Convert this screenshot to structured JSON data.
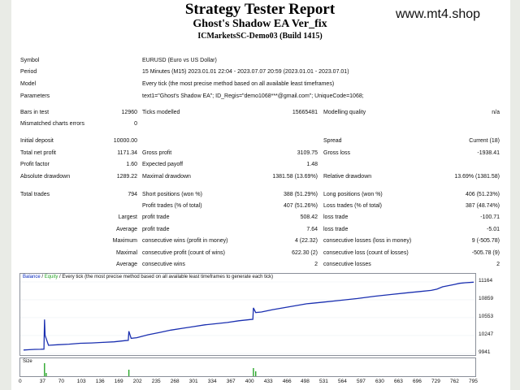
{
  "header": {
    "title": "Strategy Tester Report",
    "subtitle": "Ghost's Shadow EA Ver_fix",
    "build": "ICMarketsSC-Demo03 (Build 1415)",
    "watermark": "www.mt4.shop"
  },
  "info": {
    "symbol_label": "Symbol",
    "symbol_value": "EURUSD (Euro vs US Dollar)",
    "period_label": "Period",
    "period_value": "15 Minutes (M15) 2023.01.01 22:04 - 2023.07.07 20:59 (2023.01.01 - 2023.07.01)",
    "model_label": "Model",
    "model_value": "Every tick (the most precise method based on all available least timeframes)",
    "params_label": "Parameters",
    "params_value": "text1=\"Ghost's Shadow EA\"; ID_Regis=\"demo1068***@gmail.com\"; UniqueCode=1068;"
  },
  "bars": {
    "bars_label": "Bars in test",
    "bars_value": "12960",
    "ticks_label": "Ticks modelled",
    "ticks_value": "15665481",
    "quality_label": "Modelling quality",
    "quality_value": "n/a",
    "mismatch_label": "Mismatched charts errors",
    "mismatch_value": "0"
  },
  "stats": {
    "initial_deposit_label": "Initial deposit",
    "initial_deposit_value": "10000.00",
    "spread_label": "Spread",
    "spread_value": "Current (18)",
    "net_profit_label": "Total net profit",
    "net_profit_value": "1171.34",
    "gross_profit_label": "Gross profit",
    "gross_profit_value": "3109.75",
    "gross_loss_label": "Gross loss",
    "gross_loss_value": "-1938.41",
    "profit_factor_label": "Profit factor",
    "profit_factor_value": "1.60",
    "expected_payoff_label": "Expected payoff",
    "expected_payoff_value": "1.48",
    "abs_dd_label": "Absolute drawdown",
    "abs_dd_value": "1289.22",
    "max_dd_label": "Maximal drawdown",
    "max_dd_value": "1381.58 (13.69%)",
    "rel_dd_label": "Relative drawdown",
    "rel_dd_value": "13.69% (1381.58)"
  },
  "trades": {
    "total_label": "Total trades",
    "total_value": "794",
    "short_label": "Short positions (won %)",
    "short_value": "388 (51.29%)",
    "long_label": "Long positions (won %)",
    "long_value": "406 (51.23%)",
    "profit_trades_label": "Profit trades (% of total)",
    "profit_trades_value": "407 (51.26%)",
    "loss_trades_label": "Loss trades (% of total)",
    "loss_trades_value": "387 (48.74%)",
    "largest_label": "Largest",
    "largest_profit_label": "profit trade",
    "largest_profit_value": "508.42",
    "largest_loss_label": "loss trade",
    "largest_loss_value": "-100.71",
    "average_label": "Average",
    "average_profit_label": "profit trade",
    "average_profit_value": "7.64",
    "average_loss_label": "loss trade",
    "average_loss_value": "-5.01",
    "maximum_label": "Maximum",
    "max_wins_label": "consecutive wins (profit in money)",
    "max_wins_value": "4 (22.32)",
    "max_losses_label": "consecutive losses (loss in money)",
    "max_losses_value": "9 (-505.78)",
    "maximal_label": "Maximal",
    "maximal_profit_label": "consecutive profit (count of wins)",
    "maximal_profit_value": "622.30 (2)",
    "maximal_loss_label": "consecutive loss (count of losses)",
    "maximal_loss_value": "-505.78 (9)",
    "avg_label": "Average",
    "avg_wins_label": "consecutive wins",
    "avg_wins_value": "2",
    "avg_losses_label": "consecutive losses",
    "avg_losses_value": "2"
  },
  "chart_legend": {
    "balance": "Balance",
    "sep1": " / ",
    "equity": "Equity",
    "rest": " / Every tick (the most precise method based on all available least timeframes to generate each tick)"
  },
  "chart_data": {
    "type": "line",
    "title": "",
    "xlabel": "",
    "ylabel": "",
    "x_ticks": [
      "0",
      "37",
      "70",
      "103",
      "136",
      "169",
      "202",
      "235",
      "268",
      "301",
      "334",
      "367",
      "400",
      "433",
      "466",
      "498",
      "531",
      "564",
      "597",
      "630",
      "663",
      "696",
      "729",
      "762",
      "795"
    ],
    "y_ticks": [
      "11164",
      "10859",
      "10553",
      "10247",
      "9941"
    ],
    "ylim": [
      9941,
      11164
    ],
    "xlim": [
      0,
      795
    ],
    "series": [
      {
        "color": "#1a2fb0",
        "x": [
          0,
          10,
          20,
          30,
          36,
          37,
          38,
          44,
          60,
          80,
          100,
          120,
          140,
          160,
          180,
          185,
          186,
          190,
          200,
          220,
          240,
          260,
          280,
          300,
          320,
          340,
          360,
          380,
          400,
          405,
          406,
          410,
          420,
          440,
          470,
          500,
          530,
          560,
          590,
          620,
          650,
          680,
          700,
          720,
          730,
          740,
          750,
          760,
          770,
          780,
          795
        ],
        "y": [
          10000,
          10005,
          10010,
          10012,
          10015,
          10520,
          10250,
          10080,
          10090,
          10100,
          10115,
          10120,
          10130,
          10140,
          10160,
          10165,
          10320,
          10200,
          10210,
          10260,
          10300,
          10340,
          10370,
          10400,
          10430,
          10450,
          10470,
          10500,
          10520,
          10525,
          10720,
          10640,
          10650,
          10690,
          10740,
          10790,
          10820,
          10850,
          10880,
          10920,
          10950,
          10980,
          11000,
          11020,
          11040,
          11080,
          11100,
          11120,
          11140,
          11150,
          11160
        ]
      }
    ],
    "size_bars": [
      {
        "x": 37,
        "h": 0.9
      },
      {
        "x": 40,
        "h": 0.3
      },
      {
        "x": 186,
        "h": 0.5
      },
      {
        "x": 406,
        "h": 0.6
      },
      {
        "x": 410,
        "h": 0.4
      }
    ],
    "size_label": "Size"
  }
}
